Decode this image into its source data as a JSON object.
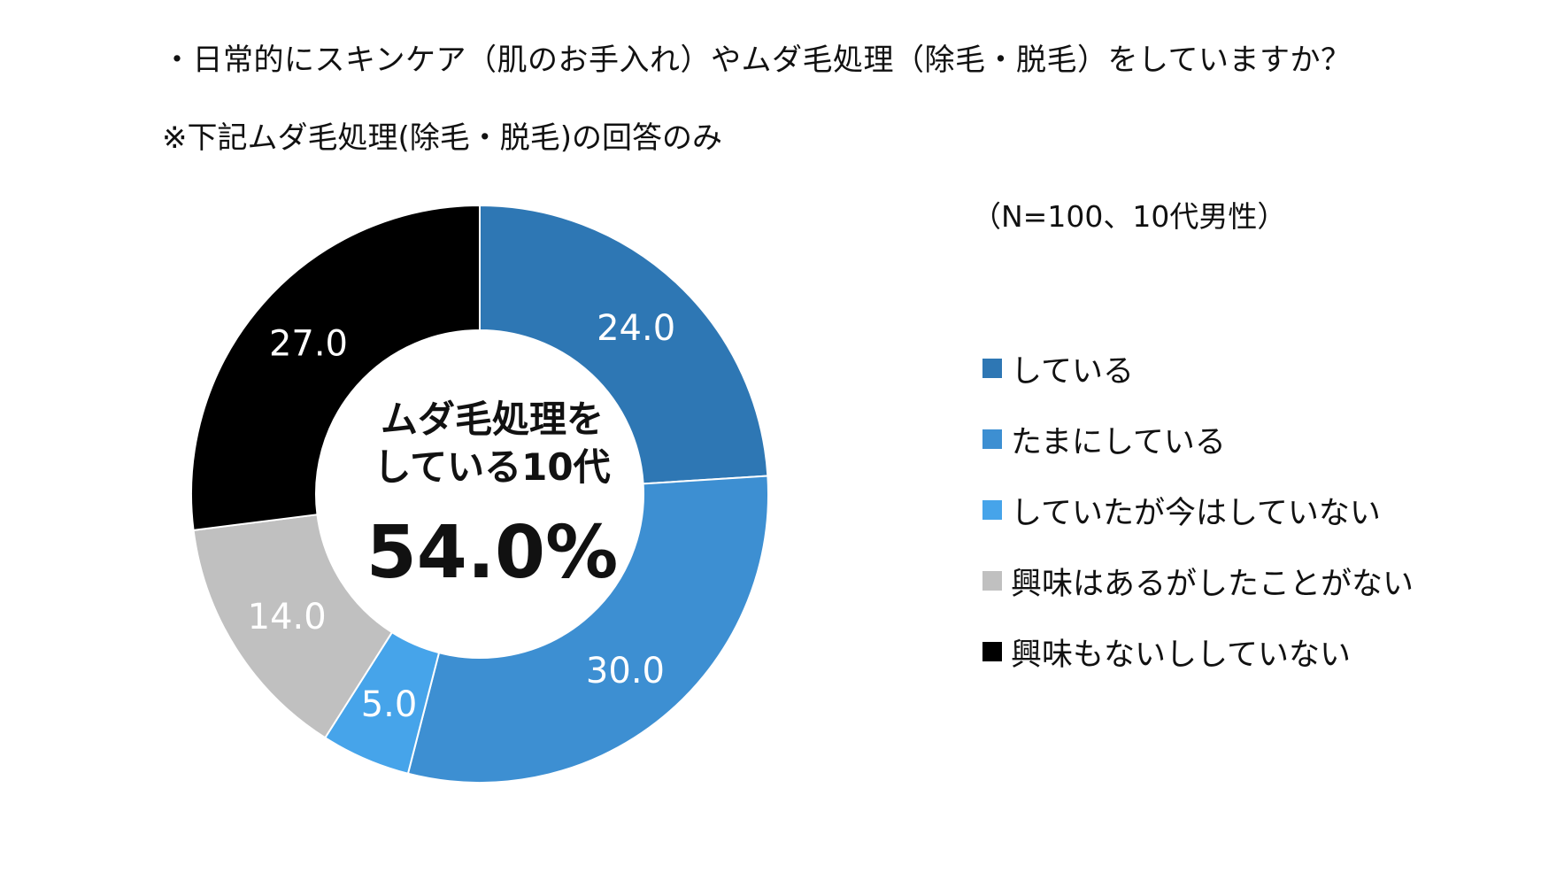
{
  "title": "・日常的にスキンケア（肌のお手入れ）やムダ毛処理（除毛・脱毛）をしていますか？",
  "subtitle": "※下記ムダ毛処理(除毛・脱毛)の回答のみ",
  "sample_note": "（N=100、10代男性）",
  "center": {
    "line1": "ムダ毛処理を",
    "line2": "している10代",
    "value": "54.0%"
  },
  "chart_data": {
    "type": "pie",
    "donut": true,
    "categories": [
      "している",
      "たまにしている",
      "していたが今はしていない",
      "興味はあるがしたことがない",
      "興味もないししていない"
    ],
    "values": [
      24.0,
      30.0,
      5.0,
      14.0,
      27.0
    ],
    "value_labels": [
      "24.0",
      "30.0",
      "5.0",
      "14.0",
      "27.0"
    ],
    "colors": [
      "#2e77b4",
      "#3d8fd2",
      "#46a4ea",
      "#c0c0c0",
      "#000000"
    ],
    "legend_position": "right"
  }
}
